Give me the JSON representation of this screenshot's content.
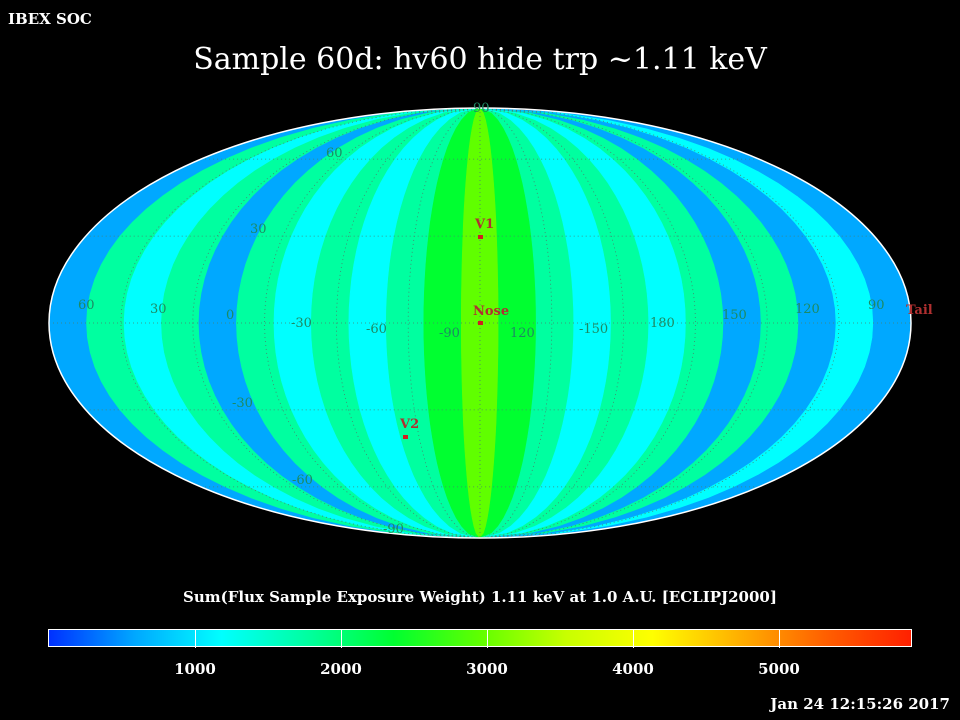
{
  "header": {
    "org": "IBEX SOC",
    "title": "Sample 60d: hv60 hide trp ~1.11 keV"
  },
  "colorbar": {
    "title": "Sum(Flux Sample Exposure Weight)  1.11 keV at 1.0 A.U. [ECLIPJ2000]",
    "ticks": [
      "1000",
      "2000",
      "3000",
      "4000",
      "5000"
    ],
    "colors": [
      "#0030ff",
      "#00a8ff",
      "#00ffff",
      "#00ffa0",
      "#00ff30",
      "#60ff00",
      "#c8ff00",
      "#ffff00",
      "#ffb000",
      "#ff6000",
      "#ff2000"
    ]
  },
  "map": {
    "latitude_labels": [
      "90",
      "60",
      "30",
      "-30",
      "-60",
      "-90"
    ],
    "longitude_labels": [
      "60",
      "30",
      "0",
      "-30",
      "-60",
      "-90",
      "120",
      "-150",
      "180",
      "150",
      "120",
      "90"
    ],
    "markers": {
      "v1": "V1",
      "nose": "Nose",
      "v2": "V2",
      "tail": "Tail"
    }
  },
  "chart_data": {
    "type": "heatmap",
    "projection": "Mollweide",
    "title": "Sample 60d: hv60 hide trp ~1.11 keV",
    "colorbar_label": "Sum(Flux Sample Exposure Weight)  1.11 keV at 1.0 A.U. [ECLIPJ2000]",
    "value_range": [
      0,
      5900
    ],
    "colorbar_ticks": [
      1000,
      2000,
      3000,
      4000,
      5000
    ],
    "grid": true,
    "meridian_values_deg": [
      270,
      240,
      210,
      180,
      150,
      120,
      90,
      60,
      30,
      0,
      -30,
      -60,
      -90
    ],
    "meridian_bands_value": [
      600,
      1500,
      900,
      1700,
      700,
      1600,
      900,
      1800,
      1000,
      2000,
      2400,
      3200,
      2400,
      1900,
      1100,
      1700,
      900,
      1700,
      800,
      1500,
      700,
      1400,
      500
    ],
    "markers": [
      {
        "name": "V1",
        "lon": 255,
        "lat": 34
      },
      {
        "name": "Nose",
        "lon": 255,
        "lat": 5
      },
      {
        "name": "V2",
        "lon": 289,
        "lat": -30
      },
      {
        "name": "Tail",
        "lon": 75,
        "lat": -5
      }
    ]
  },
  "footer": {
    "timestamp": "Jan 24 12:15:26 2017"
  }
}
